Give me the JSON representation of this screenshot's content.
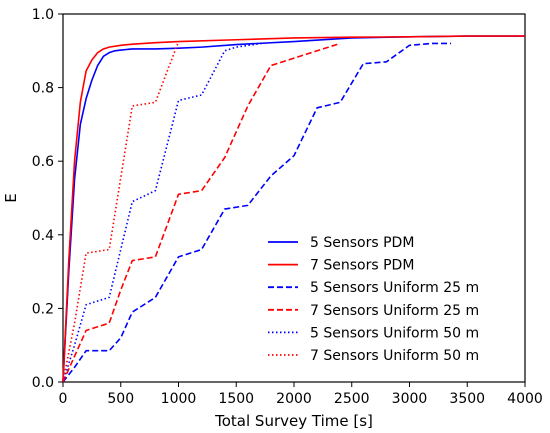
{
  "chart_data": {
    "type": "line",
    "title": "",
    "xlabel": "Total Survey Time [s]",
    "ylabel": "E",
    "xlim": [
      0,
      4000
    ],
    "ylim": [
      0,
      1.0
    ],
    "x_ticks": [
      0,
      500,
      1000,
      1500,
      2000,
      2500,
      3000,
      3500,
      4000
    ],
    "y_ticks": [
      0.0,
      0.2,
      0.4,
      0.6,
      0.8,
      1.0
    ],
    "x_tick_labels": [
      "0",
      "500",
      "1000",
      "1500",
      "2000",
      "2500",
      "3000",
      "3500",
      "4000"
    ],
    "y_tick_labels": [
      "0.0",
      "0.2",
      "0.4",
      "0.6",
      "0.8",
      "1.0"
    ],
    "grid": false,
    "legend_position": "lower-right",
    "series": [
      {
        "name": "5 Sensors PDM",
        "color": "#0000ff",
        "style": "solid",
        "x": [
          0,
          50,
          100,
          150,
          200,
          250,
          300,
          350,
          400,
          450,
          500,
          600,
          800,
          1000,
          1200,
          1500,
          2000,
          2500,
          3000,
          3500,
          4000
        ],
        "y": [
          0,
          0.3,
          0.55,
          0.7,
          0.77,
          0.82,
          0.86,
          0.885,
          0.895,
          0.9,
          0.902,
          0.905,
          0.905,
          0.907,
          0.91,
          0.917,
          0.925,
          0.935,
          0.938,
          0.94,
          0.94
        ]
      },
      {
        "name": "7 Sensors PDM",
        "color": "#ff0000",
        "style": "solid",
        "x": [
          0,
          50,
          100,
          150,
          200,
          250,
          300,
          350,
          400,
          500,
          600,
          800,
          1000,
          1500,
          2000,
          2500,
          3000,
          3500,
          4000
        ],
        "y": [
          0,
          0.33,
          0.6,
          0.76,
          0.845,
          0.875,
          0.895,
          0.905,
          0.91,
          0.915,
          0.918,
          0.922,
          0.925,
          0.93,
          0.935,
          0.937,
          0.938,
          0.94,
          0.94
        ]
      },
      {
        "name": "5 Sensors Uniform 25 m",
        "color": "#0000ff",
        "style": "dashed",
        "x": [
          0,
          100,
          200,
          400,
          500,
          600,
          800,
          1000,
          1200,
          1400,
          1600,
          1800,
          2000,
          2200,
          2400,
          2600,
          2800,
          3000,
          3200,
          3360
        ],
        "y": [
          0,
          0.04,
          0.085,
          0.085,
          0.12,
          0.19,
          0.23,
          0.34,
          0.36,
          0.47,
          0.48,
          0.56,
          0.615,
          0.745,
          0.76,
          0.865,
          0.87,
          0.915,
          0.92,
          0.92
        ]
      },
      {
        "name": "7 Sensors Uniform 25 m",
        "color": "#ff0000",
        "style": "dashed",
        "x": [
          0,
          100,
          200,
          400,
          500,
          600,
          800,
          1000,
          1200,
          1400,
          1600,
          1800,
          2000,
          2200,
          2400
        ],
        "y": [
          0,
          0.07,
          0.14,
          0.16,
          0.25,
          0.33,
          0.34,
          0.51,
          0.52,
          0.61,
          0.75,
          0.86,
          0.88,
          0.9,
          0.92
        ]
      },
      {
        "name": "5 Sensors Uniform 50 m",
        "color": "#0000ff",
        "style": "dotted",
        "x": [
          0,
          100,
          200,
          400,
          600,
          800,
          1000,
          1200,
          1400,
          1500,
          1720
        ],
        "y": [
          0,
          0.1,
          0.21,
          0.23,
          0.49,
          0.52,
          0.765,
          0.78,
          0.9,
          0.91,
          0.92
        ]
      },
      {
        "name": "7 Sensors Uniform 50 m",
        "color": "#ff0000",
        "style": "dotted",
        "x": [
          0,
          100,
          200,
          400,
          600,
          800,
          1000
        ],
        "y": [
          0,
          0.16,
          0.35,
          0.36,
          0.75,
          0.76,
          0.925
        ]
      }
    ]
  }
}
